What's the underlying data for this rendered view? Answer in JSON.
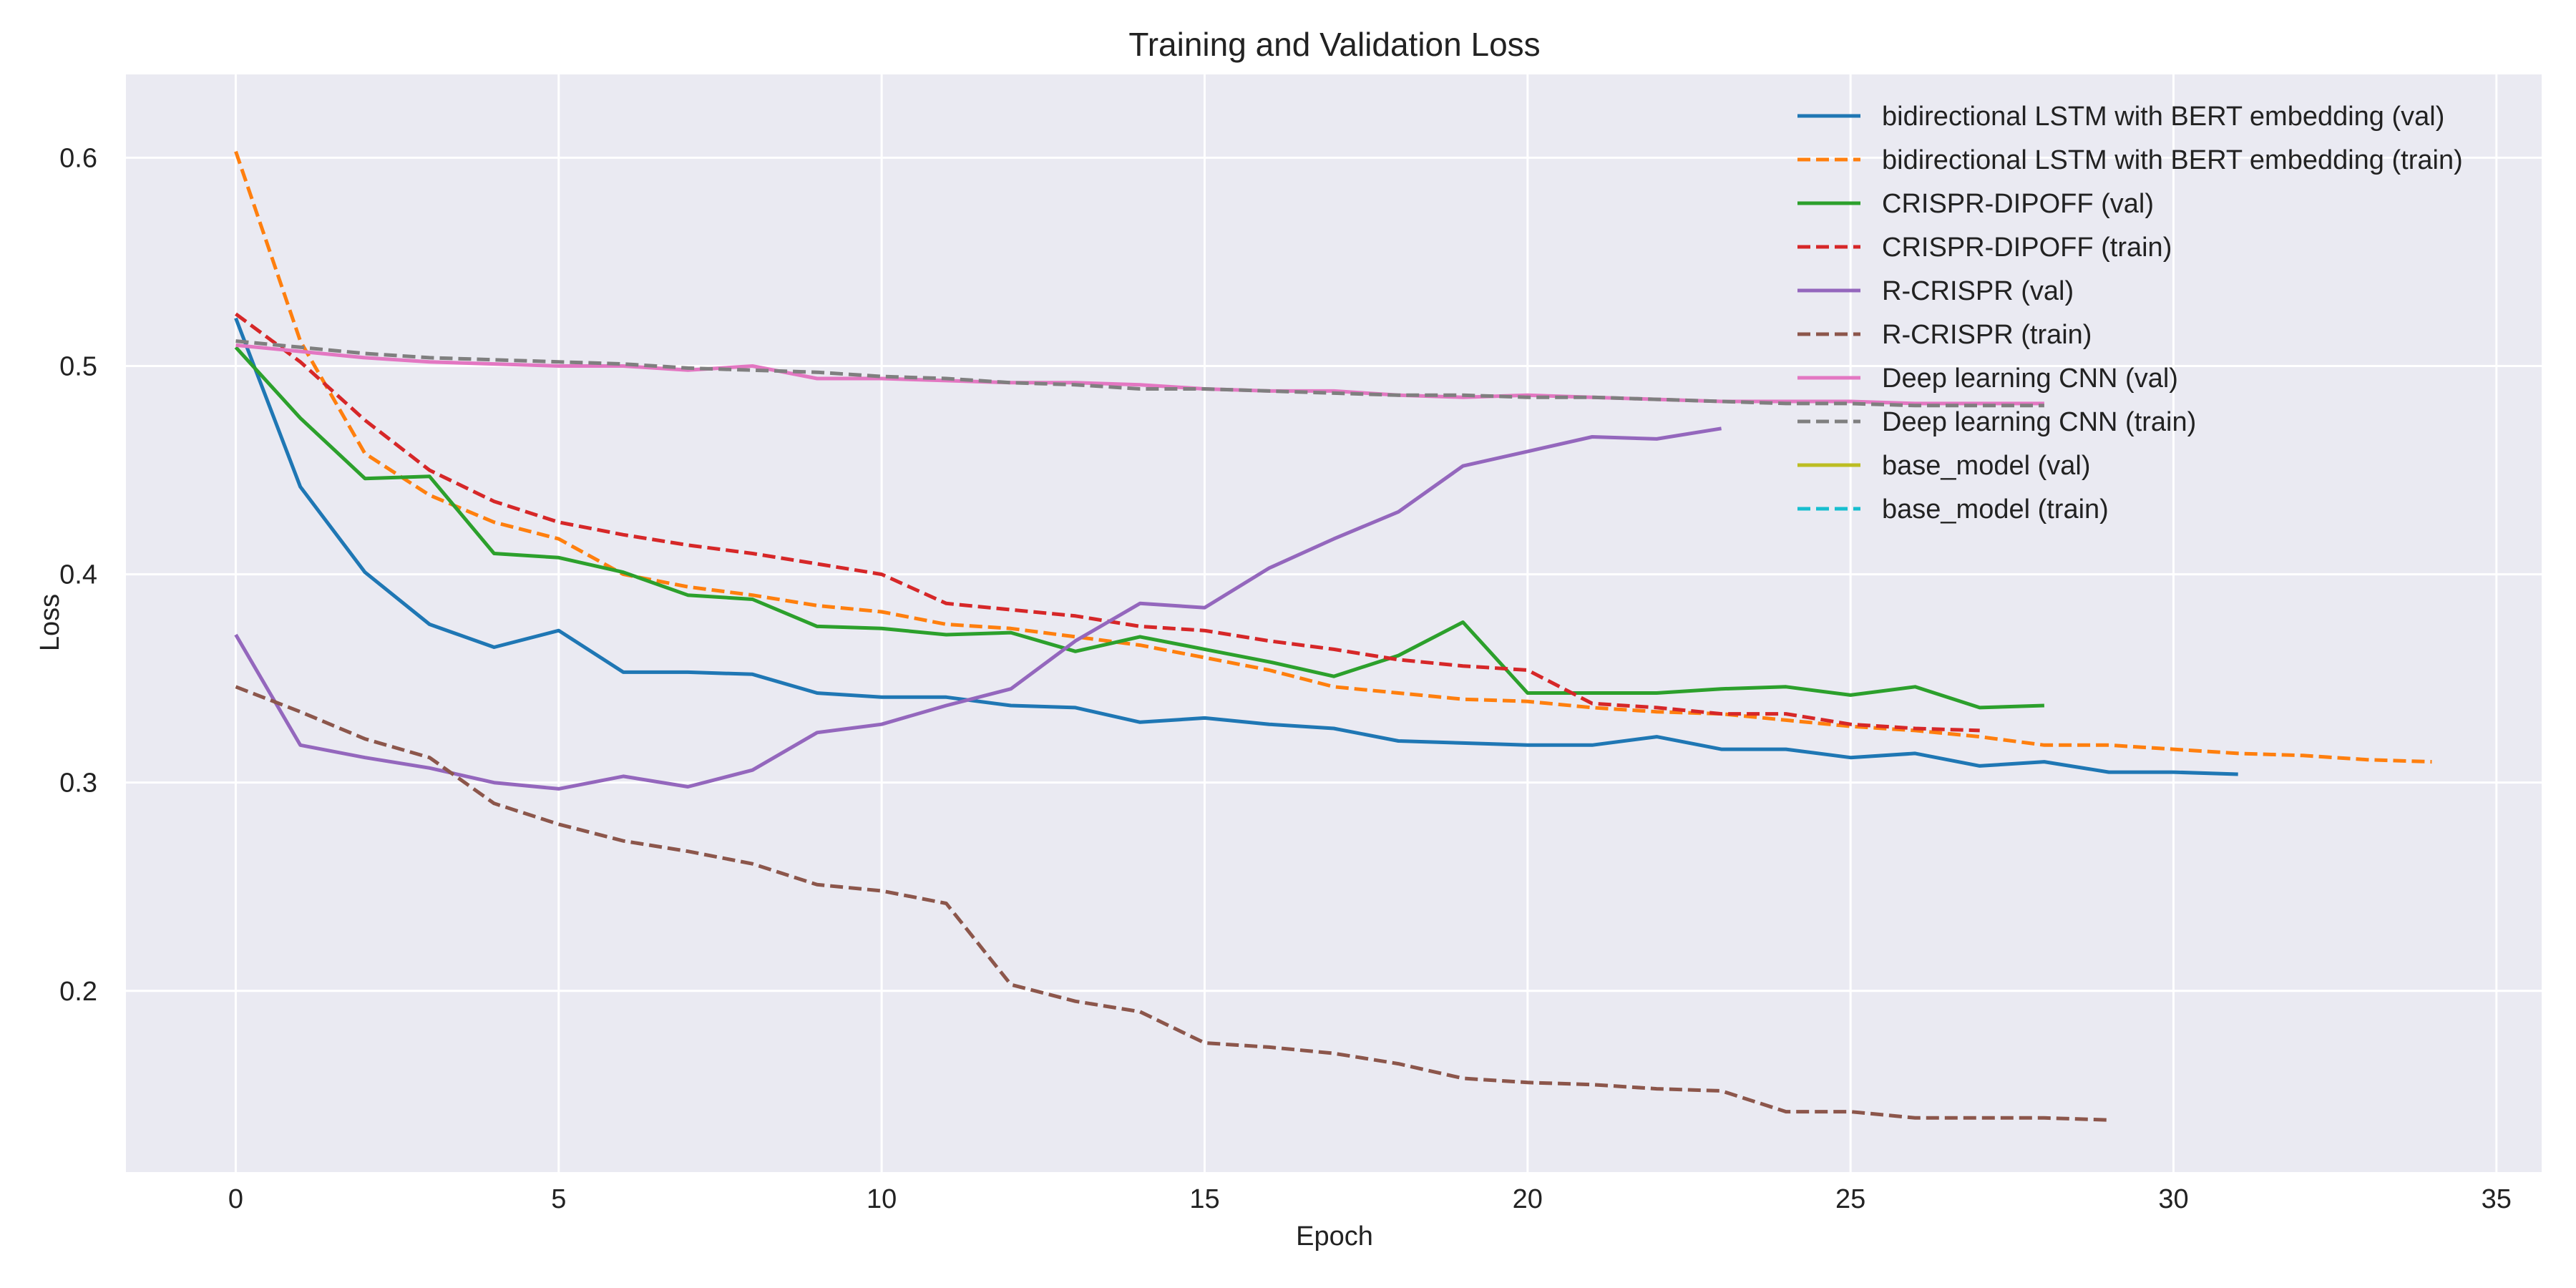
{
  "chart_data": {
    "type": "line",
    "title": "Training and Validation Loss",
    "xlabel": "Epoch",
    "ylabel": "Loss",
    "xlim": [
      -1.7,
      35.7
    ],
    "ylim": [
      0.113,
      0.64
    ],
    "xticks": [
      0,
      5,
      10,
      15,
      20,
      25,
      30,
      35
    ],
    "yticks": [
      0.2,
      0.3,
      0.4,
      0.5,
      0.6
    ],
    "grid": true,
    "legend_position": "top-right",
    "background": "#eaeaf2",
    "series": [
      {
        "name": "bidirectional LSTM with BERT embedding (val)",
        "color": "#1f77b4",
        "dashed": false,
        "values": [
          0.523,
          0.442,
          0.401,
          0.376,
          0.365,
          0.373,
          0.353,
          0.353,
          0.352,
          0.343,
          0.341,
          0.341,
          0.337,
          0.336,
          0.329,
          0.331,
          0.328,
          0.326,
          0.32,
          0.319,
          0.318,
          0.318,
          0.322,
          0.316,
          0.316,
          0.312,
          0.314,
          0.308,
          0.31,
          0.305,
          0.305,
          0.304
        ]
      },
      {
        "name": "bidirectional LSTM with BERT embedding (train)",
        "color": "#ff7f0e",
        "dashed": true,
        "values": [
          0.603,
          0.512,
          0.458,
          0.438,
          0.425,
          0.417,
          0.4,
          0.394,
          0.39,
          0.385,
          0.382,
          0.376,
          0.374,
          0.37,
          0.366,
          0.36,
          0.354,
          0.346,
          0.343,
          0.34,
          0.339,
          0.336,
          0.334,
          0.333,
          0.33,
          0.327,
          0.325,
          0.322,
          0.318,
          0.318,
          0.316,
          0.314,
          0.313,
          0.311,
          0.31
        ]
      },
      {
        "name": "CRISPR-DIPOFF (val)",
        "color": "#2ca02c",
        "dashed": false,
        "values": [
          0.509,
          0.475,
          0.446,
          0.447,
          0.41,
          0.408,
          0.401,
          0.39,
          0.388,
          0.375,
          0.374,
          0.371,
          0.372,
          0.363,
          0.37,
          0.364,
          0.358,
          0.351,
          0.361,
          0.377,
          0.343,
          0.343,
          0.343,
          0.345,
          0.346,
          0.342,
          0.346,
          0.336,
          0.337
        ]
      },
      {
        "name": "CRISPR-DIPOFF (train)",
        "color": "#d62728",
        "dashed": true,
        "values": [
          0.525,
          0.502,
          0.474,
          0.45,
          0.435,
          0.425,
          0.419,
          0.414,
          0.41,
          0.405,
          0.4,
          0.386,
          0.383,
          0.38,
          0.375,
          0.373,
          0.368,
          0.364,
          0.359,
          0.356,
          0.354,
          0.338,
          0.336,
          0.333,
          0.333,
          0.328,
          0.326,
          0.325
        ]
      },
      {
        "name": "R-CRISPR (val)",
        "color": "#9467bd",
        "dashed": false,
        "values": [
          0.371,
          0.318,
          0.312,
          0.307,
          0.3,
          0.297,
          0.303,
          0.298,
          0.306,
          0.324,
          0.328,
          0.337,
          0.345,
          0.368,
          0.386,
          0.384,
          0.403,
          0.417,
          0.43,
          0.452,
          0.459,
          0.466,
          0.465,
          0.47
        ]
      },
      {
        "name": "R-CRISPR (train)",
        "color": "#8c564b",
        "dashed": true,
        "values": [
          0.346,
          0.334,
          0.321,
          0.312,
          0.29,
          0.28,
          0.272,
          0.267,
          0.261,
          0.251,
          0.248,
          0.242,
          0.203,
          0.195,
          0.19,
          0.175,
          0.173,
          0.17,
          0.165,
          0.158,
          0.156,
          0.155,
          0.153,
          0.152,
          0.142,
          0.142,
          0.139,
          0.139,
          0.139,
          0.138
        ]
      },
      {
        "name": "Deep learning CNN (val)",
        "color": "#e377c2",
        "dashed": false,
        "values": [
          0.51,
          0.507,
          0.504,
          0.502,
          0.501,
          0.5,
          0.5,
          0.498,
          0.5,
          0.494,
          0.494,
          0.493,
          0.492,
          0.492,
          0.491,
          0.489,
          0.488,
          0.488,
          0.486,
          0.485,
          0.486,
          0.485,
          0.484,
          0.483,
          0.483,
          0.483,
          0.482,
          0.482,
          0.482
        ]
      },
      {
        "name": "Deep learning CNN (train)",
        "color": "#7f7f7f",
        "dashed": true,
        "values": [
          0.512,
          0.509,
          0.506,
          0.504,
          0.503,
          0.502,
          0.501,
          0.499,
          0.498,
          0.497,
          0.495,
          0.494,
          0.492,
          0.491,
          0.489,
          0.489,
          0.488,
          0.487,
          0.486,
          0.486,
          0.485,
          0.485,
          0.484,
          0.483,
          0.482,
          0.482,
          0.481,
          0.481,
          0.481
        ]
      },
      {
        "name": "base_model (val)",
        "color": "#bcbd22",
        "dashed": false,
        "values": []
      },
      {
        "name": "base_model (train)",
        "color": "#17becf",
        "dashed": true,
        "values": []
      }
    ]
  }
}
